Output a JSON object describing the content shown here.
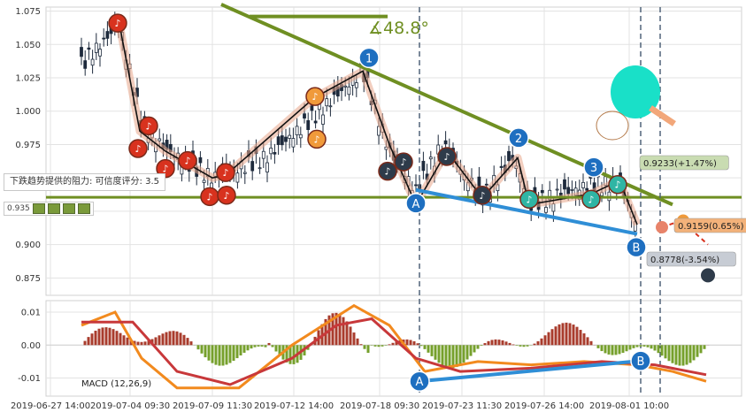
{
  "chart_data": [
    {
      "type": "candlestick",
      "panel": "price",
      "y_ticks": [
        "1.075",
        "1.050",
        "1.025",
        "1.000",
        "0.975",
        "0.950",
        "0.925",
        "0.900",
        "0.875"
      ],
      "ylim": [
        0.862,
        1.078
      ],
      "x_ticks": [
        "2019-06-27 14:00",
        "2019-07-04 09:30",
        "2019-07-09 11:30",
        "2019-07-12 14:00",
        "2019-07-18 09:30",
        "2019-07-23 11:30",
        "2019-07-26 14:00",
        "2019-08-01 10:00"
      ],
      "grid": true,
      "angle_label": "∡48.8°",
      "support_level": 0.9355,
      "wave_labels": [
        "1",
        "2",
        "3",
        "A",
        "B"
      ],
      "price_targets": [
        {
          "label": "0.9233(+1.47%)",
          "value": 0.9233,
          "color": "#c9dcb2"
        },
        {
          "label": "0.9159(0.65%)",
          "value": 0.9159,
          "color": "#f3b27a"
        },
        {
          "label": "0.8778(-3.54%)",
          "value": 0.8778,
          "color": "#c7ccd4"
        }
      ],
      "resistance_text": "下跌趋势提供的阻力: 可信度评分: 3.5",
      "support_tag": "0.935"
    },
    {
      "type": "line",
      "panel": "macd",
      "title": "MACD (12,26,9)",
      "y_ticks": [
        "0.01",
        "0.00",
        "-0.01"
      ],
      "ylim": [
        -0.0155,
        0.0135
      ],
      "series": [
        {
          "name": "MACD",
          "color": "#f28a1e"
        },
        {
          "name": "Signal",
          "color": "#c8383a"
        }
      ],
      "histogram_colors": {
        "positive": "#a93c2d",
        "negative": "#76a02c"
      },
      "wave_labels": [
        "A",
        "B"
      ]
    }
  ],
  "colors": {
    "grid": "#e3e3e3",
    "trend_line": "#6f8f22",
    "support_line": "#6f8f22",
    "blue_line": "#2f8ed6",
    "up_wick": "#1e2b3d",
    "dashed": "#50647a"
  }
}
